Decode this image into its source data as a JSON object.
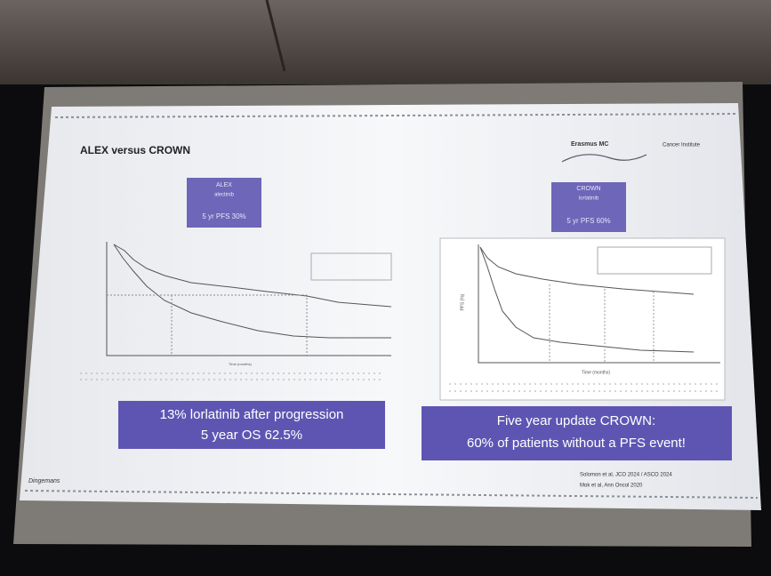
{
  "slide": {
    "title": "ALEX versus CROWN",
    "logo": {
      "name": "Erasmus MC",
      "unit": "Cancer Institute"
    },
    "left_box": {
      "trial": "ALEX",
      "drug": "alectinib",
      "result": "5 yr PFS 30%"
    },
    "right_box": {
      "trial": "CROWN",
      "drug": "lorlatinib",
      "result": "5 yr PFS 60%"
    },
    "right_chart": {
      "y_label": "PFS (%)",
      "x_label": "Time (months)"
    },
    "left_chart": {
      "x_label": "Time (months)"
    },
    "left_callout": [
      "13% lorlatinib after progression",
      "5 year OS 62.5%"
    ],
    "right_callout": [
      "Five year update CROWN:",
      "60% of patients without a PFS event!"
    ],
    "presenter": "Dingemans",
    "references": [
      "Solomon et al, JCO 2024 / ASCO 2024",
      "Mok et al, Ann Oncol 2020"
    ]
  }
}
